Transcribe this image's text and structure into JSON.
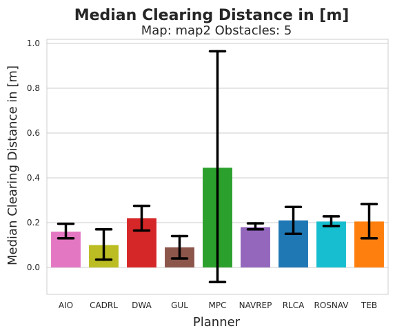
{
  "chart_data": {
    "type": "bar",
    "title": "Median Clearing Distance in [m]",
    "subtitle": "Map: map2 Obstacles: 5",
    "xlabel": "Planner",
    "ylabel": "Median Clearing Distance in [m]",
    "ylim": [
      -0.12,
      1.02
    ],
    "yticks": [
      "0.0",
      "0.2",
      "0.4",
      "0.6",
      "0.8",
      "1.0"
    ],
    "grid": true,
    "categories": [
      "AIO",
      "CADRL",
      "DWA",
      "GUL",
      "MPC",
      "NAVREP",
      "RLCA",
      "ROSNAV",
      "TEB"
    ],
    "values": [
      0.16,
      0.1,
      0.22,
      0.09,
      0.445,
      0.18,
      0.21,
      0.205,
      0.205
    ],
    "error_low": [
      0.13,
      0.035,
      0.165,
      0.04,
      -0.065,
      0.17,
      0.15,
      0.185,
      0.13
    ],
    "error_high": [
      0.195,
      0.17,
      0.275,
      0.14,
      0.965,
      0.197,
      0.27,
      0.228,
      0.283
    ],
    "colors": [
      "#e377c2",
      "#bcbd22",
      "#d62728",
      "#8c564b",
      "#2ca02c",
      "#9467bd",
      "#1f77b4",
      "#17becf",
      "#ff7f0e"
    ]
  }
}
